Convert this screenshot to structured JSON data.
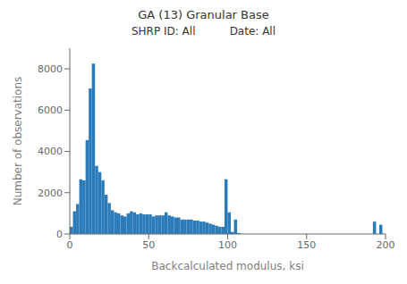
{
  "chart_data": {
    "type": "histogram",
    "title": "GA (13) Granular Base",
    "subtitle": "SHRP ID: All          Date: All",
    "x_label": "Backcalculated modulus, ksi",
    "y_label": "Number of observations",
    "xlim": [
      0,
      200
    ],
    "ylim": [
      0,
      9000
    ],
    "xticks": [
      0,
      50,
      100,
      150,
      200
    ],
    "yticks": [
      0,
      2000,
      4000,
      6000,
      8000
    ],
    "color": "#2b7bba",
    "grid": false,
    "bins": [
      0,
      2,
      4,
      6,
      8,
      10,
      12,
      14,
      16,
      18,
      20,
      22,
      24,
      26,
      28,
      30,
      32,
      34,
      36,
      38,
      40,
      42,
      44,
      46,
      48,
      50,
      52,
      54,
      56,
      58,
      60,
      62,
      64,
      66,
      68,
      70,
      72,
      74,
      76,
      78,
      80,
      82,
      84,
      86,
      88,
      90,
      92,
      94,
      96,
      98,
      100,
      102,
      104,
      106,
      108,
      110,
      112,
      114,
      116,
      118,
      120,
      122,
      124,
      126,
      128,
      130,
      132,
      134,
      136,
      138,
      140,
      142,
      144,
      146,
      148,
      150,
      152,
      154,
      156,
      158,
      160,
      162,
      164,
      166,
      168,
      170,
      172,
      174,
      176,
      178,
      180,
      182,
      184,
      186,
      188,
      190,
      192,
      194,
      196,
      198,
      200
    ],
    "values": [
      350,
      1100,
      1450,
      2650,
      2600,
      4550,
      7050,
      8250,
      3300,
      3000,
      2600,
      1900,
      1500,
      1150,
      1050,
      1000,
      900,
      850,
      1000,
      1100,
      1050,
      950,
      1000,
      950,
      950,
      950,
      850,
      900,
      900,
      900,
      1050,
      900,
      850,
      800,
      800,
      700,
      700,
      700,
      700,
      650,
      650,
      600,
      600,
      550,
      500,
      450,
      400,
      350,
      350,
      2650,
      1050,
      100,
      700,
      50,
      0,
      0,
      0,
      0,
      0,
      0,
      0,
      0,
      0,
      0,
      0,
      0,
      0,
      0,
      0,
      0,
      0,
      0,
      0,
      0,
      0,
      0,
      0,
      0,
      0,
      0,
      0,
      0,
      0,
      0,
      0,
      0,
      0,
      0,
      0,
      0,
      0,
      0,
      0,
      0,
      0,
      0,
      600,
      0,
      450,
      0
    ]
  }
}
